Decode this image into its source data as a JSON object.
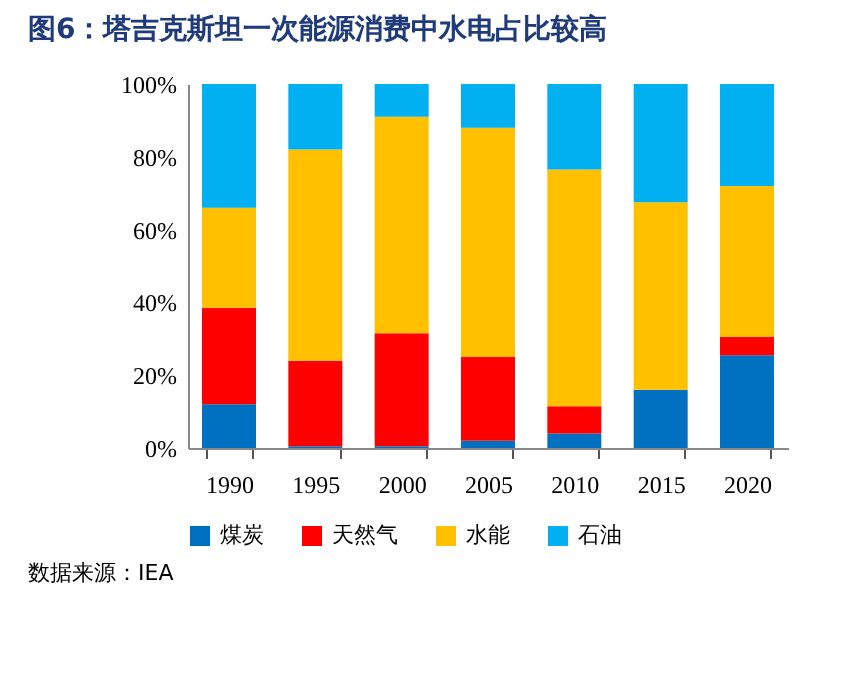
{
  "chart_data": {
    "type": "bar",
    "title": "图6：塔吉克斯坦一次能源消费中水电占比较高",
    "categories": [
      "1990",
      "1995",
      "2000",
      "2005",
      "2010",
      "2015",
      "2020"
    ],
    "stacked": true,
    "series": [
      {
        "name": "煤炭",
        "color": "#0070c0",
        "values": [
          12,
          0.5,
          0.5,
          2,
          4,
          16,
          25.5
        ]
      },
      {
        "name": "天然气",
        "color": "#ff0000",
        "values": [
          26.5,
          23.5,
          31,
          23,
          7.5,
          0,
          5
        ]
      },
      {
        "name": "水能",
        "color": "#ffc000",
        "values": [
          27.5,
          58,
          59.5,
          63,
          65,
          51.5,
          41.5
        ]
      },
      {
        "name": "石油",
        "color": "#00b0f0",
        "values": [
          34,
          18,
          9,
          12,
          23.5,
          32.5,
          28
        ]
      }
    ],
    "ylim": [
      0,
      100
    ],
    "yticks": [
      {
        "value": 0,
        "label": "0%"
      },
      {
        "value": 20,
        "label": "20%"
      },
      {
        "value": 40,
        "label": "40%"
      },
      {
        "value": 60,
        "label": "60%"
      },
      {
        "value": 80,
        "label": "80%"
      },
      {
        "value": 100,
        "label": "100%"
      }
    ],
    "grid": false,
    "legend": "bottom",
    "annotations": [
      "数据来源：IEA"
    ]
  }
}
